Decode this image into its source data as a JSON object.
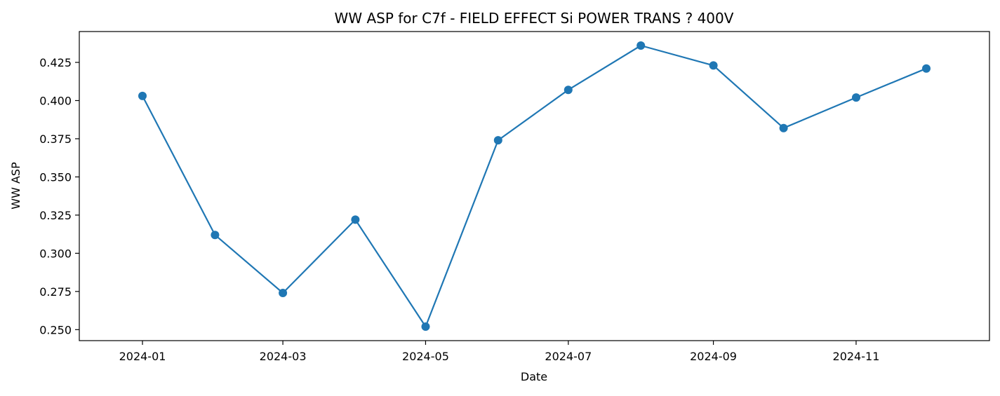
{
  "chart_data": {
    "type": "line",
    "title": "WW ASP for C7f - FIELD EFFECT Si POWER TRANS ? 400V",
    "xlabel": "Date",
    "ylabel": "WW ASP",
    "x": [
      "2024-01-01",
      "2024-02-01",
      "2024-03-01",
      "2024-04-01",
      "2024-05-01",
      "2024-06-01",
      "2024-07-01",
      "2024-08-01",
      "2024-09-01",
      "2024-10-01",
      "2024-11-01",
      "2024-12-01"
    ],
    "series": [
      {
        "values": [
          0.403,
          0.312,
          0.274,
          0.322,
          0.252,
          0.374,
          0.407,
          0.436,
          0.423,
          0.382,
          0.402,
          0.421
        ],
        "color": "#1f77b4",
        "marker": "circle"
      }
    ],
    "x_ticks": [
      {
        "date": "2024-01-01",
        "label": "2024-01"
      },
      {
        "date": "2024-03-01",
        "label": "2024-03"
      },
      {
        "date": "2024-05-01",
        "label": "2024-05"
      },
      {
        "date": "2024-07-01",
        "label": "2024-07"
      },
      {
        "date": "2024-09-01",
        "label": "2024-09"
      },
      {
        "date": "2024-11-01",
        "label": "2024-11"
      }
    ],
    "y_ticks": [
      {
        "value": 0.25,
        "label": "0.250"
      },
      {
        "value": 0.275,
        "label": "0.275"
      },
      {
        "value": 0.3,
        "label": "0.300"
      },
      {
        "value": 0.325,
        "label": "0.325"
      },
      {
        "value": 0.35,
        "label": "0.350"
      },
      {
        "value": 0.375,
        "label": "0.375"
      },
      {
        "value": 0.4,
        "label": "0.400"
      },
      {
        "value": 0.425,
        "label": "0.425"
      }
    ],
    "xlim": [
      "2023-12-05",
      "2024-12-28"
    ],
    "ylim": [
      0.2428,
      0.4452
    ],
    "grid": false,
    "legend": "none"
  }
}
